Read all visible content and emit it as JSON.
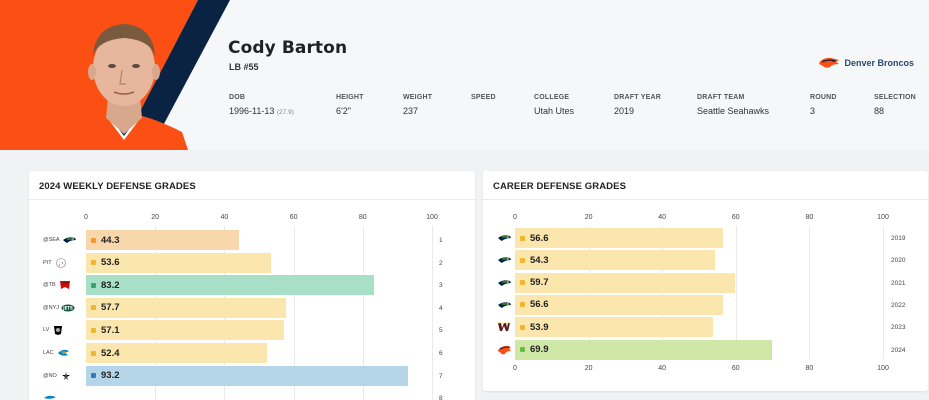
{
  "player": {
    "name": "Cody Barton",
    "position": "LB #55",
    "team": "Denver Broncos",
    "bio": [
      {
        "label": "DOB",
        "value": "1996-11-13",
        "extra": "(27.9)"
      },
      {
        "label": "HEIGHT",
        "value": "6'2\"",
        "extra": ""
      },
      {
        "label": "WEIGHT",
        "value": "237",
        "extra": ""
      },
      {
        "label": "SPEED",
        "value": "",
        "extra": ""
      },
      {
        "label": "COLLEGE",
        "value": "Utah Utes",
        "extra": ""
      },
      {
        "label": "DRAFT YEAR",
        "value": "2019",
        "extra": ""
      },
      {
        "label": "DRAFT TEAM",
        "value": "Seattle Seahawks",
        "extra": ""
      },
      {
        "label": "ROUND",
        "value": "3",
        "extra": ""
      },
      {
        "label": "SELECTION",
        "value": "88",
        "extra": ""
      }
    ]
  },
  "colors": {
    "orange": "#fb4f14",
    "navy": "#0a2343",
    "bar_low": "#f9d7ac",
    "bar_mid": "#fbe6ad",
    "bar_high": "#a8dfc7",
    "bar_elite": "#b5d5e9",
    "bar_green": "#cfe8a8"
  },
  "weekly": {
    "title": "2024 WEEKLY DEFENSE GRADES",
    "ticks": [
      "0",
      "20",
      "40",
      "60",
      "80",
      "100"
    ],
    "rows": [
      {
        "opp": "@SEA",
        "logo": "seahawks-logo-icon",
        "value": 44.3,
        "label": "44.3",
        "week": "1",
        "color": "#f9d7ac",
        "dot": "#f29a2e"
      },
      {
        "opp": "PIT",
        "logo": "steelers-logo-icon",
        "value": 53.6,
        "label": "53.6",
        "week": "2",
        "color": "#fbe6ad",
        "dot": "#f2b62c"
      },
      {
        "opp": "@TB",
        "logo": "buccaneers-logo-icon",
        "value": 83.2,
        "label": "83.2",
        "week": "3",
        "color": "#a8dfc7",
        "dot": "#2fa870"
      },
      {
        "opp": "@NYJ",
        "logo": "jets-logo-icon",
        "value": 57.7,
        "label": "57.7",
        "week": "4",
        "color": "#fbe6ad",
        "dot": "#f2b62c"
      },
      {
        "opp": "LV",
        "logo": "raiders-logo-icon",
        "value": 57.1,
        "label": "57.1",
        "week": "5",
        "color": "#fbe6ad",
        "dot": "#f2b62c"
      },
      {
        "opp": "LAC",
        "logo": "chargers-logo-icon",
        "value": 52.4,
        "label": "52.4",
        "week": "6",
        "color": "#fbe6ad",
        "dot": "#f2b62c"
      },
      {
        "opp": "@NO",
        "logo": "saints-logo-icon",
        "value": 93.2,
        "label": "93.2",
        "week": "7",
        "color": "#b5d5e9",
        "dot": "#2f7fc0"
      },
      {
        "opp": "",
        "logo": "panthers-logo-icon",
        "value": 0,
        "label": "",
        "week": "8",
        "color": "#ffffff",
        "dot": "#ffffff"
      }
    ]
  },
  "career": {
    "title": "CAREER DEFENSE GRADES",
    "ticks": [
      "0",
      "20",
      "40",
      "60",
      "80",
      "100"
    ],
    "rows": [
      {
        "logo": "seahawks-logo-icon",
        "value": 56.6,
        "label": "56.6",
        "year": "2019",
        "color": "#fbe6ad",
        "dot": "#f2b62c"
      },
      {
        "logo": "seahawks-logo-icon",
        "value": 54.3,
        "label": "54.3",
        "year": "2020",
        "color": "#fbe6ad",
        "dot": "#f2b62c"
      },
      {
        "logo": "seahawks-logo-icon",
        "value": 59.7,
        "label": "59.7",
        "year": "2021",
        "color": "#fbe6ad",
        "dot": "#f2b62c"
      },
      {
        "logo": "seahawks-logo-icon",
        "value": 56.6,
        "label": "56.6",
        "year": "2022",
        "color": "#fbe6ad",
        "dot": "#f2b62c"
      },
      {
        "logo": "commanders-logo-icon",
        "value": 53.9,
        "label": "53.9",
        "year": "2023",
        "color": "#fbe6ad",
        "dot": "#f2b62c"
      },
      {
        "logo": "broncos-logo-icon",
        "value": 69.9,
        "label": "69.9",
        "year": "2024",
        "color": "#cfe8a8",
        "dot": "#6dbb3a"
      }
    ]
  }
}
